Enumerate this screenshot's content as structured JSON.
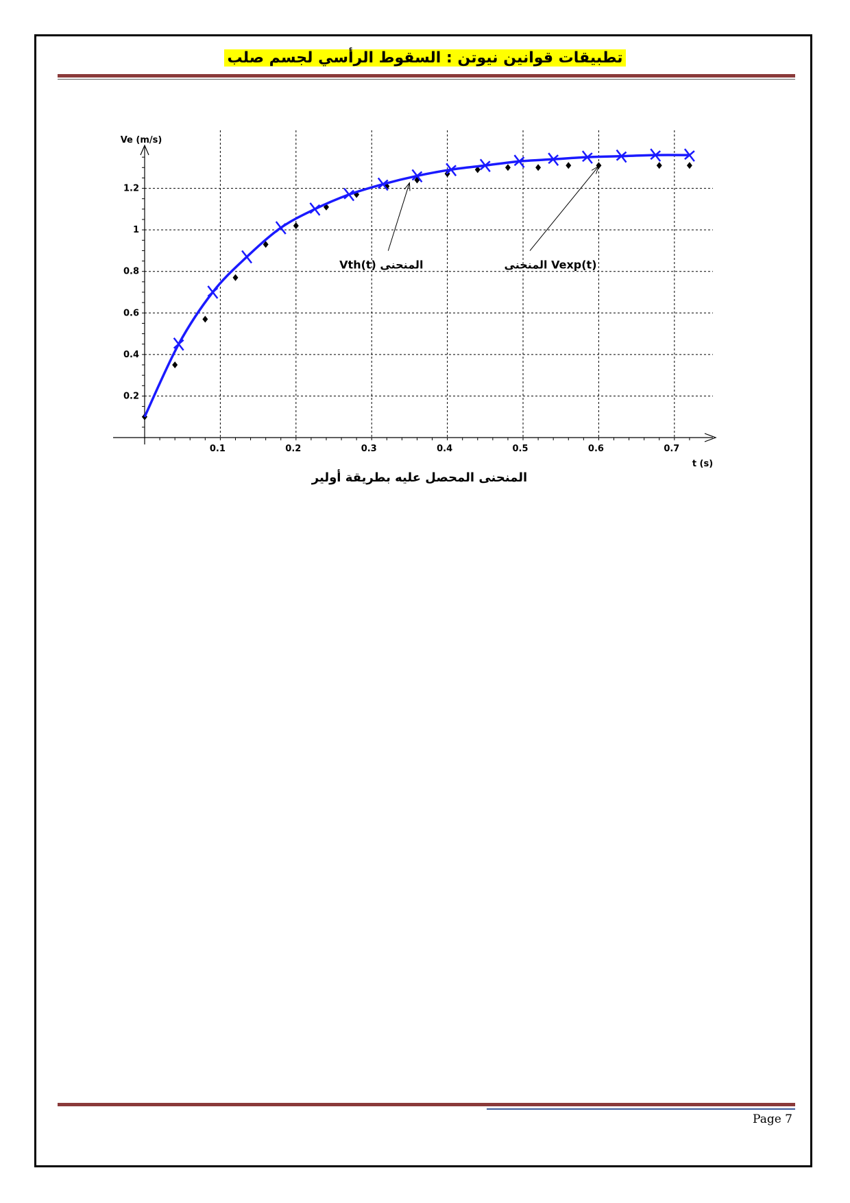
{
  "document": {
    "title": "تطبيقات قوانين نيوتن : السقوط الرأسي لجسم صلب",
    "page_label": "Page 7"
  },
  "chart_data": {
    "type": "line",
    "xlabel": "t (s)",
    "ylabel": "Ve (m/s)",
    "caption": "المنحنى المحصل عليه بطريقة أولير",
    "xlim": [
      0,
      0.74
    ],
    "ylim": [
      0,
      1.4
    ],
    "x_ticks": [
      0.1,
      0.2,
      0.3,
      0.4,
      0.5,
      0.6,
      0.7
    ],
    "x_tick_labels": [
      "0.1",
      "0.2",
      "0.3",
      "0.4",
      "0.5",
      "0.6",
      "0.7"
    ],
    "y_ticks": [
      0.2,
      0.4,
      0.6,
      0.8,
      1.0,
      1.2
    ],
    "y_tick_labels": [
      "0.2",
      "0.4",
      "0.6",
      "0.8",
      "1",
      "1.2"
    ],
    "grid": true,
    "annotations": [
      {
        "text": "Vth(t) المنحنى",
        "target_x": 0.35,
        "target_y": 1.24,
        "at_x": 0.32,
        "at_y": 0.84
      },
      {
        "text": "المنحنى Vexp(t)",
        "target_x": 0.6,
        "target_y": 1.32,
        "at_x": 0.5,
        "at_y": 0.84
      }
    ],
    "series": [
      {
        "role": "Vth",
        "color": "#1a1aff",
        "marker": "cross",
        "x": [
          0.0,
          0.045,
          0.09,
          0.135,
          0.18,
          0.225,
          0.27,
          0.315,
          0.36,
          0.405,
          0.45,
          0.495,
          0.54,
          0.585,
          0.63,
          0.675,
          0.72
        ],
        "y": [
          0.1,
          0.45,
          0.7,
          0.87,
          1.01,
          1.1,
          1.17,
          1.22,
          1.26,
          1.29,
          1.31,
          1.33,
          1.34,
          1.35,
          1.355,
          1.36,
          1.36
        ]
      },
      {
        "role": "Vexp",
        "color": "#000000",
        "marker": "diamond",
        "x": [
          0.0,
          0.04,
          0.08,
          0.12,
          0.16,
          0.2,
          0.24,
          0.28,
          0.32,
          0.36,
          0.4,
          0.44,
          0.48,
          0.52,
          0.56,
          0.6,
          0.68,
          0.72
        ],
        "y": [
          0.1,
          0.35,
          0.57,
          0.77,
          0.93,
          1.02,
          1.11,
          1.17,
          1.21,
          1.24,
          1.27,
          1.29,
          1.3,
          1.3,
          1.31,
          1.31,
          1.31,
          1.31
        ]
      }
    ]
  }
}
